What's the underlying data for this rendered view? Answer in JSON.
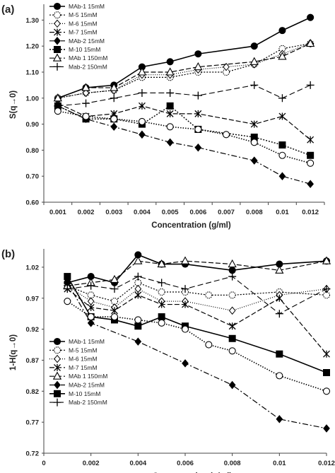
{
  "chart_data": [
    {
      "type": "line",
      "panel_label": "(a)",
      "xlabel": "Concentration (g/ml)",
      "ylabel": "S(q→0)",
      "x_scale": "categorical",
      "categories": [
        "0.001",
        "0.002",
        "0.003",
        "0.004",
        "0.005",
        "0.006",
        "0.007",
        "0.008",
        "0.01",
        "0.012"
      ],
      "ylim": [
        0.6,
        1.35
      ],
      "yticks": [
        "0.60",
        "0.70",
        "0.80",
        "0.90",
        "1.00",
        "1.10",
        "1.20",
        "1.30"
      ],
      "grid": false,
      "legend_position": "top-left",
      "series": [
        {
          "name": "MAb-1 15mM",
          "x": [
            "0.001",
            "0.002",
            "0.003",
            "0.004",
            "0.005",
            "0.006",
            "0.008",
            "0.01",
            "0.012"
          ],
          "values": [
            1.0,
            1.04,
            1.05,
            1.12,
            1.14,
            1.17,
            1.2,
            1.26,
            1.31
          ]
        },
        {
          "name": "M-5 15mM",
          "x": [
            "0.001",
            "0.002",
            "0.003",
            "0.004",
            "0.005",
            "0.006",
            "0.007",
            "0.008",
            "0.01",
            "0.012"
          ],
          "values": [
            1.0,
            1.02,
            1.03,
            1.08,
            1.08,
            1.1,
            1.1,
            1.13,
            1.19,
            1.21
          ]
        },
        {
          "name": "M-6 15mM",
          "x": [
            "0.001",
            "0.002",
            "0.003",
            "0.004",
            "0.005",
            "0.006",
            "0.007",
            "0.008",
            "0.01",
            "0.012"
          ],
          "values": [
            1.0,
            1.02,
            1.03,
            1.09,
            1.09,
            1.11,
            1.12,
            1.13,
            1.17,
            1.21
          ]
        },
        {
          "name": "M-7 15mM",
          "x": [
            "0.001",
            "0.002",
            "0.003",
            "0.004",
            "0.005",
            "0.006",
            "0.008",
            "0.01",
            "0.012"
          ],
          "values": [
            0.98,
            0.93,
            0.94,
            0.97,
            0.94,
            0.94,
            0.9,
            0.93,
            0.84
          ]
        },
        {
          "name": "MAb-2 15mM",
          "x": [
            "0.001",
            "0.002",
            "0.003",
            "0.004",
            "0.005",
            "0.006",
            "0.008",
            "0.01",
            "0.012"
          ],
          "values": [
            0.97,
            0.92,
            0.89,
            0.86,
            0.83,
            0.81,
            0.76,
            0.7,
            0.67
          ]
        },
        {
          "name": "M-10 15mM",
          "x": [
            "0.001",
            "0.002",
            "0.003",
            "0.004",
            "0.005",
            "0.006",
            "0.008",
            "0.01",
            "0.012"
          ],
          "values": [
            0.97,
            0.92,
            0.92,
            0.9,
            0.97,
            0.88,
            0.85,
            0.82,
            0.78
          ]
        },
        {
          "name": "MAb 1 150mM",
          "x": [
            "0.001",
            "0.002",
            "0.003",
            "0.004",
            "0.005",
            "0.006",
            "0.008",
            "0.01",
            "0.012"
          ],
          "values": [
            1.0,
            1.04,
            1.04,
            1.1,
            1.1,
            1.12,
            1.14,
            1.16,
            1.21
          ]
        },
        {
          "name": "Mab-2 150mM",
          "x": [
            "0.001",
            "0.002",
            "0.003",
            "0.004",
            "0.005",
            "0.006",
            "0.008",
            "0.01",
            "0.012"
          ],
          "values": [
            0.97,
            0.98,
            1.0,
            1.02,
            1.02,
            1.01,
            1.05,
            1.0,
            1.05
          ]
        },
        {
          "name": "",
          "x": [
            "0.001",
            "0.002",
            "0.003",
            "0.004",
            "0.005",
            "0.006",
            "0.007",
            "0.008",
            "0.01",
            "0.012"
          ],
          "values": [
            0.95,
            0.93,
            0.92,
            0.91,
            0.89,
            0.88,
            0.86,
            0.83,
            0.78,
            0.75
          ]
        }
      ]
    },
    {
      "type": "line",
      "panel_label": "(b)",
      "xlabel": "Concentration (g/ml)",
      "ylabel": "1-H(q→0)",
      "x_scale": "linear",
      "xlim": [
        0,
        0.012
      ],
      "xticks": [
        "0",
        "0.002",
        "0.004",
        "0.006",
        "0.008",
        "0.01",
        "0.012"
      ],
      "ylim": [
        0.72,
        1.045
      ],
      "yticks": [
        "0.72",
        "0.77",
        "0.82",
        "0.87",
        "0.92",
        "0.97",
        "1.02"
      ],
      "grid": false,
      "legend_position": "bottom-left",
      "series": [
        {
          "name": "MAb-1 15mM",
          "x": [
            0.001,
            0.002,
            0.003,
            0.004,
            0.005,
            0.006,
            0.008,
            0.01,
            0.012
          ],
          "values": [
            0.995,
            1.005,
            0.995,
            1.04,
            1.025,
            1.025,
            1.015,
            1.025,
            1.03
          ]
        },
        {
          "name": "M-5 15mM",
          "x": [
            0.001,
            0.002,
            0.003,
            0.004,
            0.005,
            0.006,
            0.007,
            0.008,
            0.01,
            0.012
          ],
          "values": [
            0.99,
            0.975,
            0.965,
            0.995,
            0.98,
            0.98,
            0.975,
            0.975,
            0.98,
            0.975
          ]
        },
        {
          "name": "M-6 15mM",
          "x": [
            0.001,
            0.002,
            0.003,
            0.004,
            0.005,
            0.006,
            0.008,
            0.01,
            0.012
          ],
          "values": [
            0.99,
            0.965,
            0.955,
            0.985,
            0.965,
            0.965,
            0.95,
            0.975,
            0.985
          ]
        },
        {
          "name": "M-7 15mM",
          "x": [
            0.001,
            0.002,
            0.003,
            0.004,
            0.005,
            0.006,
            0.008,
            0.01,
            0.012
          ],
          "values": [
            0.985,
            0.955,
            0.95,
            0.975,
            0.96,
            0.96,
            0.925,
            0.97,
            0.88
          ]
        },
        {
          "name": "MAb 1 150mM",
          "x": [
            0.001,
            0.002,
            0.003,
            0.004,
            0.005,
            0.006,
            0.008,
            0.01,
            0.012
          ],
          "values": [
            0.99,
            0.995,
            1.0,
            1.03,
            1.025,
            1.03,
            1.025,
            1.015,
            1.03
          ]
        },
        {
          "name": "MAb-2 15mM",
          "x": [
            0.001,
            0.002,
            0.004,
            0.006,
            0.008,
            0.01,
            0.012
          ],
          "values": [
            0.995,
            0.93,
            0.9,
            0.865,
            0.83,
            0.775,
            0.76
          ]
        },
        {
          "name": "M-10 15mM",
          "x": [
            0.001,
            0.002,
            0.003,
            0.004,
            0.005,
            0.006,
            0.008,
            0.01,
            0.012
          ],
          "values": [
            1.005,
            0.94,
            0.935,
            0.925,
            0.94,
            0.925,
            0.905,
            0.88,
            0.85
          ]
        },
        {
          "name": "Mab-2 150mM",
          "x": [
            0.001,
            0.002,
            0.003,
            0.004,
            0.005,
            0.006,
            0.008,
            0.01,
            0.012
          ],
          "values": [
            0.985,
            0.99,
            0.985,
            1.005,
            0.995,
            0.985,
            1.005,
            0.945,
            0.985
          ]
        },
        {
          "name": "",
          "x": [
            0.001,
            0.002,
            0.003,
            0.004,
            0.005,
            0.006,
            0.007,
            0.008,
            0.01,
            0.012
          ],
          "values": [
            0.965,
            0.94,
            0.94,
            0.935,
            0.93,
            0.92,
            0.895,
            0.885,
            0.845,
            0.82
          ]
        }
      ]
    }
  ],
  "styles": {
    "MAb-1 15mM": {
      "marker": "circle",
      "fill": "#000000",
      "dash": "none",
      "width": 1.6
    },
    "M-5 15mM": {
      "marker": "circle",
      "fill": "#ffffff",
      "dash": "2,2",
      "width": 1.2,
      "dotted_marker": true
    },
    "M-6 15mM": {
      "marker": "diamond",
      "fill": "#ffffff",
      "dash": "1,2",
      "width": 1.2
    },
    "M-7 15mM": {
      "marker": "asterisk",
      "fill": "#000000",
      "dash": "7,3",
      "width": 1.2
    },
    "MAb-2 15mM": {
      "marker": "diamond",
      "fill": "#000000",
      "dash": "8,3,2,3",
      "width": 1.2
    },
    "M-10 15mM": {
      "marker": "square",
      "fill": "#000000",
      "dash": "2,2",
      "width": 1.4
    },
    "MAb 1 150mM": {
      "marker": "triangle",
      "fill": "#ffffff",
      "dash": "7,3",
      "width": 1.2
    },
    "Mab-2 150mM": {
      "marker": "plus",
      "fill": "#000000",
      "dash": "8,4",
      "width": 1.1
    },
    "": {
      "marker": "circle",
      "fill": "#ffffff",
      "dash": "1.5,2",
      "width": 1.6
    }
  },
  "styles_b_override": {
    "M-10 15mM": {
      "dash": "none",
      "width": 1.6
    }
  }
}
